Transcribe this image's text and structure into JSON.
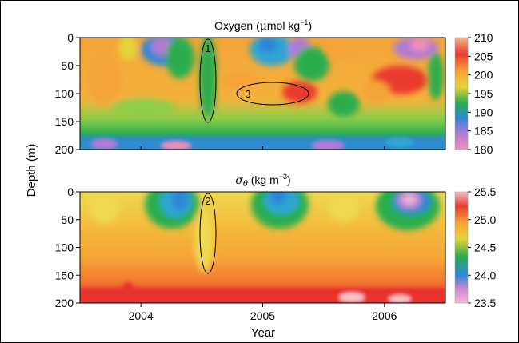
{
  "chart_data": [
    {
      "type": "heatmap",
      "title": "Oxygen (μmol kg⁻¹)",
      "title_main": "Oxygen (",
      "title_mu": "μ",
      "title_unit": "mol kg",
      "title_sup": "−1",
      "title_close": ")",
      "ylabel": "Depth (m)",
      "xlim": [
        2003.5,
        2006.5
      ],
      "ylim": [
        200,
        0
      ],
      "yticks": [
        0,
        50,
        100,
        150,
        200
      ],
      "yticklabels": [
        "0",
        "50",
        "100",
        "150",
        "200"
      ],
      "colorbar": {
        "range": [
          180,
          210
        ],
        "ticks": [
          210,
          205,
          200,
          195,
          190,
          185,
          180
        ],
        "ticklabels": [
          "210",
          "205",
          "200",
          "195",
          "190",
          "185",
          "180"
        ],
        "colors": [
          "#f08fb8",
          "#6a8fd8",
          "#2fa6d2",
          "#2cae4e",
          "#e6d438",
          "#f5a437",
          "#ea3b2f",
          "#f4b48a"
        ]
      },
      "annotations": [
        {
          "label": "1",
          "x": 2004.56,
          "depth": 75
        },
        {
          "label": "3",
          "x": 2005.0,
          "depth": 100
        }
      ]
    },
    {
      "type": "heatmap",
      "title": "σθ (kg m⁻³)",
      "title_sigma": "σ",
      "title_theta": "θ",
      "title_unit": " (kg m",
      "title_sup": "−3",
      "title_close": ")",
      "xlabel": "Year",
      "ylabel": "Depth (m)",
      "xlim": [
        2003.5,
        2006.5
      ],
      "xticks": [
        2004,
        2005,
        2006
      ],
      "xticklabels": [
        "2004",
        "2005",
        "2006"
      ],
      "ylim": [
        200,
        0
      ],
      "yticks": [
        0,
        50,
        100,
        150,
        200
      ],
      "yticklabels": [
        "0",
        "50",
        "100",
        "150",
        "200"
      ],
      "colorbar": {
        "range": [
          23.5,
          25.5
        ],
        "ticks": [
          25.5,
          25.0,
          24.5,
          24.0,
          23.5
        ],
        "ticklabels": [
          "25.5",
          "25.0",
          "24.5",
          "24.0",
          "23.5"
        ],
        "colors": [
          "#f2b8d4",
          "#6a8fd8",
          "#2fa6d2",
          "#2cae4e",
          "#e6d438",
          "#f5a437",
          "#ea3b2f",
          "#f4c3c8"
        ]
      },
      "annotations": [
        {
          "label": "2",
          "x": 2004.56,
          "depth": 75
        }
      ]
    }
  ],
  "shared_ylabel": "Depth (m)"
}
